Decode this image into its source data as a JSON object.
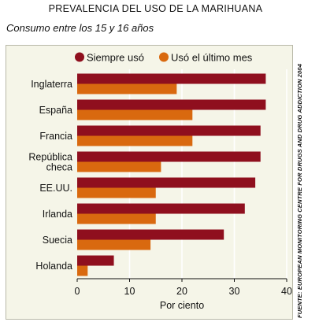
{
  "title": "PREVALENCIA DEL USO DE LA MARIHUANA",
  "subtitle": "Consumo entre los 15 y 16 años",
  "source": "FUENTE: EUROPEAN MONITORING CENTRE FOR DRUGS AND DRUG ADDICTION 2004",
  "colors": {
    "series1": "#8f0f1e",
    "series2": "#d9690f",
    "panel": "#f5f5e8",
    "grid": "#ffffff"
  },
  "chart_data": {
    "type": "bar",
    "orientation": "horizontal",
    "categories": [
      "Inglaterra",
      "España",
      "Francia",
      "República checa",
      "EE.UU.",
      "Irlanda",
      "Suecia",
      "Holanda"
    ],
    "category_lines": [
      [
        "Inglaterra"
      ],
      [
        "España"
      ],
      [
        "Francia"
      ],
      [
        "República",
        "checa"
      ],
      [
        "EE.UU."
      ],
      [
        "Irlanda"
      ],
      [
        "Suecia"
      ],
      [
        "Holanda"
      ]
    ],
    "series": [
      {
        "name": "Siempre usó",
        "values": [
          36,
          36,
          35,
          35,
          34,
          32,
          28,
          7
        ]
      },
      {
        "name": "Usó el último mes",
        "values": [
          19,
          22,
          22,
          16,
          15,
          15,
          14,
          2
        ]
      }
    ],
    "xlabel": "Por ciento",
    "xlim": [
      0,
      40
    ],
    "xticks": [
      0,
      10,
      20,
      30,
      40
    ],
    "grid": true,
    "legend_position": "top"
  }
}
